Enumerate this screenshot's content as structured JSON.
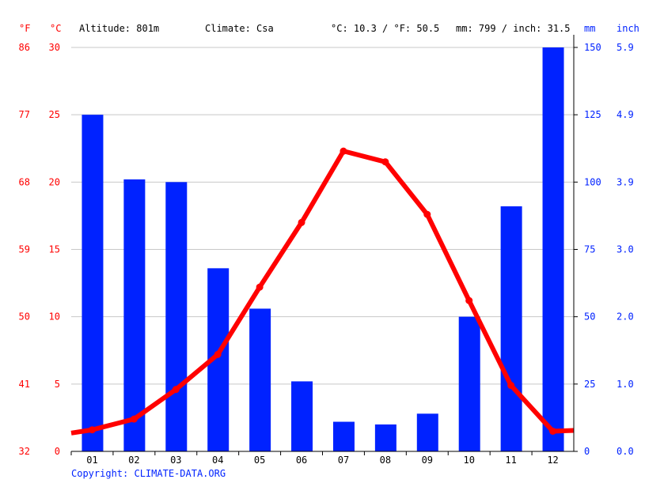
{
  "header": {
    "unit_f": "°F",
    "unit_c": "°C",
    "altitude": "Altitude: 801m",
    "climate": "Climate: Csa",
    "temp_avg": "°C: 10.3 / °F: 50.5",
    "precip_total": "mm: 799 / inch: 31.5",
    "unit_mm": "mm",
    "unit_inch": "inch"
  },
  "copyright": "Copyright: CLIMATE-DATA.ORG",
  "colors": {
    "temp": "#ff0000",
    "precip": "#0022ff",
    "grid": "#c8c8c8"
  },
  "chart_data": {
    "type": "bar+line",
    "categories": [
      "01",
      "02",
      "03",
      "04",
      "05",
      "06",
      "07",
      "08",
      "09",
      "10",
      "11",
      "12"
    ],
    "series": [
      {
        "name": "mm",
        "type": "bar",
        "axis": "right",
        "values": [
          125,
          101,
          100,
          68,
          53,
          26,
          11,
          10,
          14,
          50,
          91,
          150
        ]
      },
      {
        "name": "°C",
        "type": "line",
        "axis": "left",
        "values": [
          1.6,
          2.4,
          4.6,
          7.2,
          12.2,
          17.0,
          22.3,
          21.5,
          17.6,
          11.2,
          4.9,
          1.5
        ]
      }
    ],
    "left_axis_c": {
      "ylim": [
        0,
        30
      ],
      "ticks": [
        "0",
        "5",
        "10",
        "15",
        "20",
        "25",
        "30"
      ]
    },
    "left_axis_f": {
      "ticks": [
        "32",
        "41",
        "50",
        "59",
        "68",
        "77",
        "86"
      ]
    },
    "right_axis_mm": {
      "ylim": [
        0,
        150
      ],
      "ticks": [
        "0",
        "25",
        "50",
        "75",
        "100",
        "125",
        "150"
      ]
    },
    "right_axis_inch": {
      "ticks": [
        "0.0",
        "1.0",
        "2.0",
        "3.0",
        "3.9",
        "4.9",
        "5.9"
      ]
    },
    "grid": true
  }
}
